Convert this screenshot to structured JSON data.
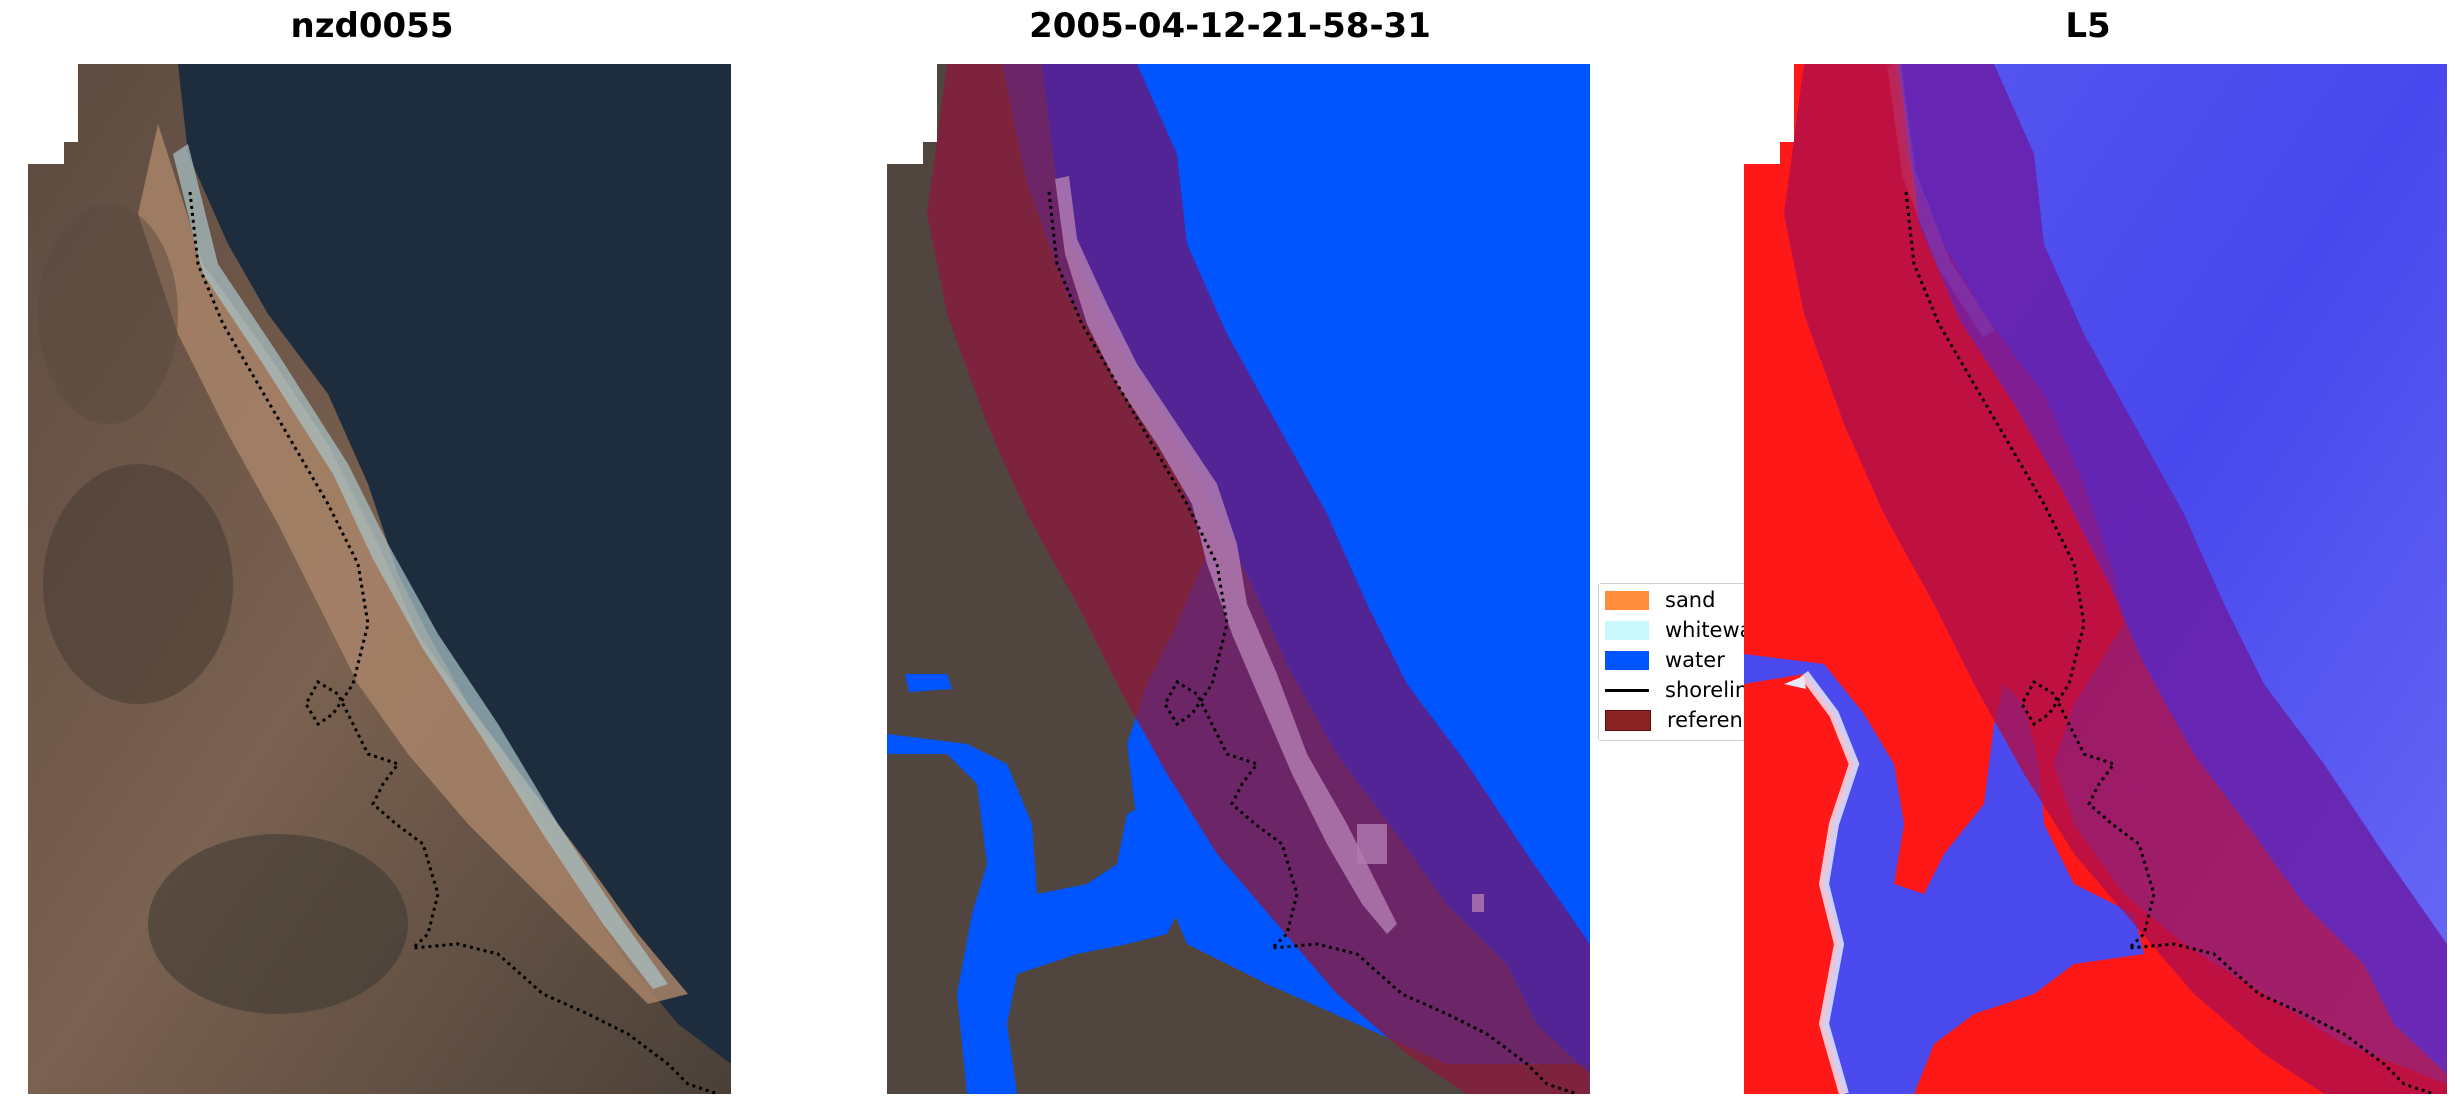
{
  "titles": {
    "left": "nzd0055",
    "center": "2005-04-12-21-58-31",
    "right": "L5"
  },
  "legend": {
    "items": [
      {
        "label": "sand",
        "color": "#ff8c3a"
      },
      {
        "label": "whitewater",
        "color": "#c8f8fb"
      },
      {
        "label": "water",
        "color": "#0055ff"
      },
      {
        "label": "shoreline",
        "color": "#000000"
      },
      {
        "label": "reference",
        "color": "#8b2323"
      }
    ]
  },
  "colors": {
    "ocean_dark": "#1e2d3e",
    "land_brown": "#6b5548",
    "sand_tan": "#b08a6c",
    "water_class": "#0055ff",
    "reference_overlay": "#8b1a3e",
    "index_red": "#ff1010",
    "index_blue": "#3030ee"
  }
}
